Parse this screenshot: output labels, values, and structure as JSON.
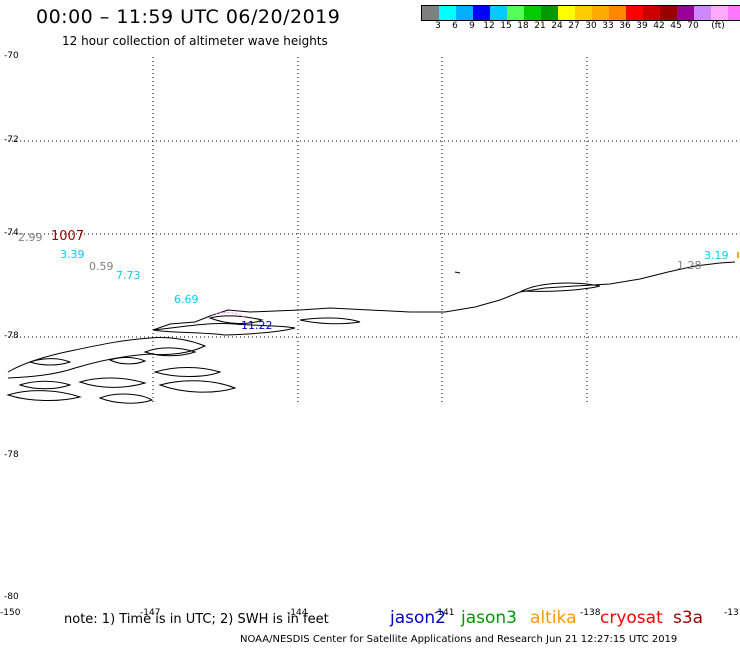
{
  "header": {
    "title": "00:00 – 11:59 UTC 06/20/2019",
    "subtitle": "12 hour collection of altimeter wave heights"
  },
  "colorbar": {
    "colors": [
      "#7f7f7f",
      "#00ffff",
      "#00b0ff",
      "#0000ff",
      "#00ccff",
      "#55ff55",
      "#00cc00",
      "#009900",
      "#ffff00",
      "#ffcc00",
      "#ffaa00",
      "#ff8800",
      "#ff0000",
      "#cc0000",
      "#990000",
      "#990099",
      "#cc88ff",
      "#ffaaff",
      "#ff77ff",
      "#000000"
    ],
    "labels": [
      "3",
      "6",
      "9",
      "12",
      "15",
      "18",
      "21",
      "24",
      "27",
      "30",
      "33",
      "36",
      "39",
      "42",
      "45",
      "70",
      "(ft)"
    ]
  },
  "axes": {
    "y_labels": [
      "-70",
      "-72",
      "-74",
      "-76",
      "-78",
      "-78",
      "-80"
    ],
    "x_labels": [
      "-150",
      "-147",
      "-144",
      "-141",
      "-138",
      "-13"
    ]
  },
  "wave_heights": [
    {
      "text": "2.99",
      "color": "#7f7f7f"
    },
    {
      "text": "1007",
      "color": "#990000"
    },
    {
      "text": "3.39",
      "color": "#00ccff"
    },
    {
      "text": "0.59",
      "color": "#7f7f7f"
    },
    {
      "text": "7.73",
      "color": "#00ccff"
    },
    {
      "text": "6.69",
      "color": "#00ccff"
    },
    {
      "text": "11.22",
      "color": "#0000cc"
    },
    {
      "text": "3.19",
      "color": "#00ccff"
    },
    {
      "text": "1.28",
      "color": "#7f7f7f"
    }
  ],
  "footer": {
    "note": "note: 1) Time is in UTC; 2) SWH is in feet",
    "satellites": [
      {
        "name": "jason2",
        "color": "#0000cc"
      },
      {
        "name": "jason3",
        "color": "#009900"
      },
      {
        "name": "altika",
        "color": "#ff9900"
      },
      {
        "name": "cryosat",
        "color": "#ff0000"
      },
      {
        "name": "s3a",
        "color": "#990000"
      }
    ],
    "credit": "NOAA/NESDIS Center for Satellite Applications and Research    Jun 21 12:27:15 UTC 2019"
  }
}
